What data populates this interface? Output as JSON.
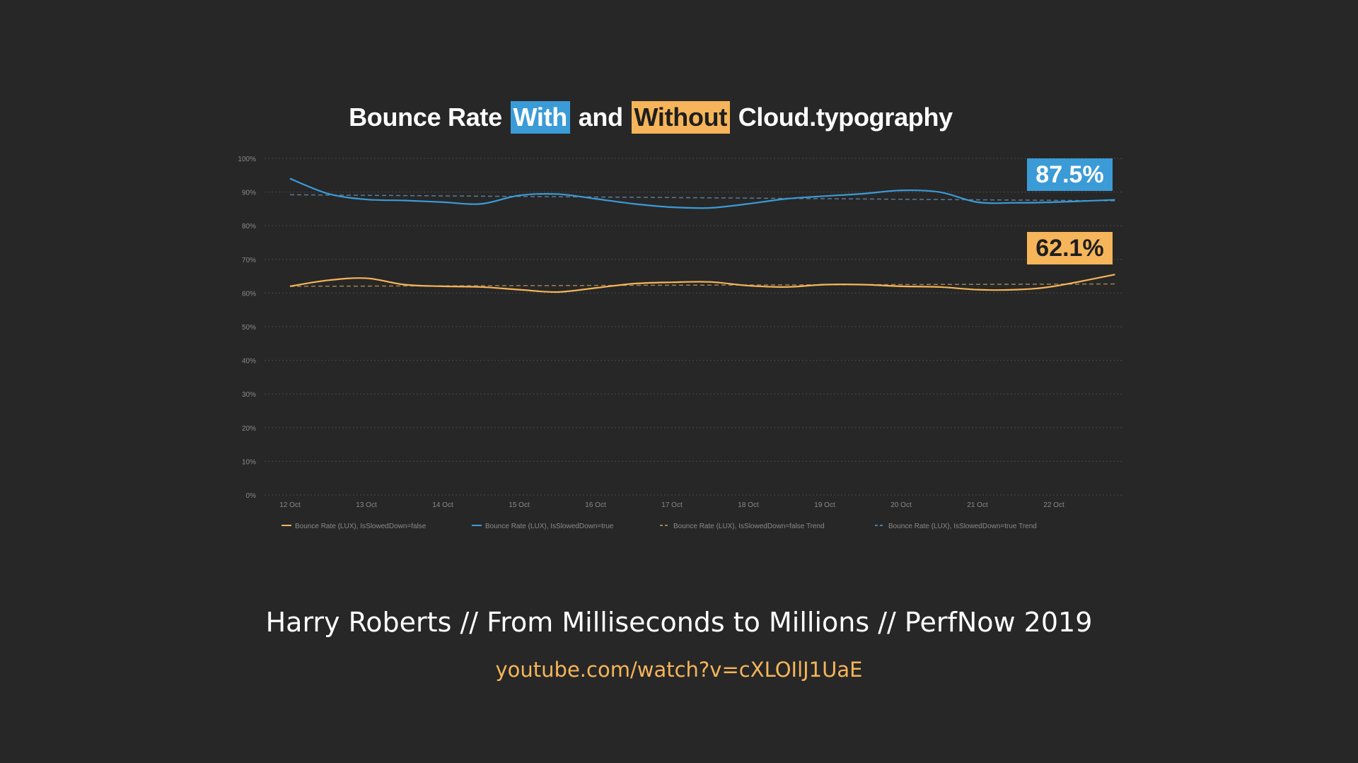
{
  "chart_data": {
    "type": "line",
    "title_parts": [
      "Bounce Rate",
      "With",
      "and",
      "Without",
      "Cloud.typography"
    ],
    "categories": [
      "12 Oct",
      "13 Oct",
      "14 Oct",
      "15 Oct",
      "16 Oct",
      "17 Oct",
      "18 Oct",
      "19 Oct",
      "20 Oct",
      "21 Oct",
      "22 Oct"
    ],
    "y_ticks": [
      "0%",
      "10%",
      "20%",
      "30%",
      "40%",
      "50%",
      "60%",
      "70%",
      "80%",
      "90%",
      "100%"
    ],
    "ylim": [
      0,
      100
    ],
    "grid": true,
    "legend_position": "bottom",
    "x": [
      0,
      0.5,
      1,
      1.5,
      2,
      2.5,
      3,
      3.5,
      4,
      4.5,
      5,
      5.5,
      6,
      6.5,
      7,
      7.5,
      8,
      8.5,
      9,
      9.5,
      10,
      10.8
    ],
    "series": [
      {
        "name": "Bounce Rate (LUX), IsSlowedDown=false",
        "color": "#f6b55a",
        "style": "solid",
        "values": [
          62.0,
          63.8,
          64.4,
          62.5,
          62.0,
          61.8,
          61.0,
          60.3,
          61.5,
          62.8,
          63.2,
          63.3,
          62.2,
          61.8,
          62.5,
          62.5,
          62.0,
          61.8,
          61.0,
          61.0,
          62.0,
          65.5
        ]
      },
      {
        "name": "Bounce Rate (LUX), IsSlowedDown=true",
        "color": "#3b9bd7",
        "style": "solid",
        "values": [
          94.0,
          89.5,
          87.8,
          87.5,
          87.0,
          86.5,
          89.0,
          89.4,
          88.0,
          86.5,
          85.5,
          85.3,
          86.5,
          88.0,
          88.8,
          89.5,
          90.5,
          90.0,
          87.0,
          86.8,
          87.0,
          87.7
        ]
      },
      {
        "name": "Bounce Rate (LUX), IsSlowedDown=false Trend",
        "color": "#a08050",
        "style": "dashed",
        "start": 62.0,
        "end": 62.7
      },
      {
        "name": "Bounce Rate (LUX), IsSlowedDown=true Trend",
        "color": "#5a7a98",
        "style": "dashed",
        "start": 89.2,
        "end": 87.4
      }
    ],
    "annotations": [
      {
        "text": "87.5%",
        "color": "#3b9bd7",
        "value": 87.5
      },
      {
        "text": "62.1%",
        "color": "#f6b55a",
        "value": 62.1
      }
    ]
  },
  "footer": {
    "talk": "Harry Roberts // From Milliseconds to Millions // PerfNow 2019",
    "link": "youtube.com/watch?v=cXLOIlJ1UaE"
  }
}
